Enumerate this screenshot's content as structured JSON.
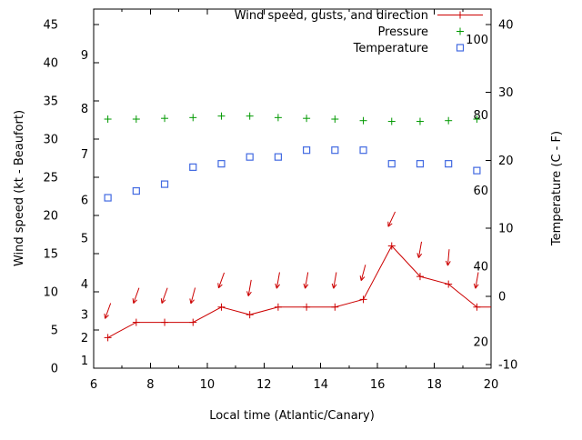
{
  "chart_data": {
    "type": "line",
    "title": "",
    "xlabel": "Local time (Atlantic/Canary)",
    "ylabel": "Wind speed (kt - Beaufort)",
    "y2label": "Temperature (C - F)",
    "x_range": [
      6,
      20
    ],
    "y_range_kt": [
      0,
      47
    ],
    "y2_range_c": [
      -10,
      40
    ],
    "x_ticks": [
      "6",
      "8",
      "10",
      "12",
      "14",
      "16",
      "18",
      "20"
    ],
    "y_ticks_kt": [
      "0",
      "5",
      "10",
      "15",
      "20",
      "25",
      "30",
      "35",
      "40",
      "45"
    ],
    "y2_ticks_c": [
      "-10",
      "0",
      "10",
      "20",
      "30",
      "40"
    ],
    "beaufort_scale_labels": [
      {
        "label": "1",
        "kt": 1
      },
      {
        "label": "2",
        "kt": 4
      },
      {
        "label": "3",
        "kt": 7
      },
      {
        "label": "4",
        "kt": 11
      },
      {
        "label": "5",
        "kt": 17
      },
      {
        "label": "6",
        "kt": 22
      },
      {
        "label": "7",
        "kt": 28
      },
      {
        "label": "8",
        "kt": 34
      },
      {
        "label": "9",
        "kt": 41
      }
    ],
    "fahrenheit_scale_labels": [
      {
        "label": "20",
        "f": 20
      },
      {
        "label": "40",
        "f": 40
      },
      {
        "label": "60",
        "f": 60
      },
      {
        "label": "80",
        "f": 80
      },
      {
        "label": "100",
        "f": 100
      }
    ],
    "x": [
      6.5,
      7.5,
      8.5,
      9.5,
      10.5,
      11.5,
      12.5,
      13.5,
      14.5,
      15.5,
      16.5,
      17.5,
      18.5,
      19.5
    ],
    "series": [
      {
        "name": "Wind speed, gusts, and direction",
        "type": "line+points+vectors",
        "marker": "plus",
        "color": "#cc0000",
        "wind_kt": [
          4,
          6,
          6,
          6,
          8,
          7,
          8,
          8,
          8,
          9,
          16,
          12,
          11,
          8
        ],
        "gust_kt": [
          7.5,
          9.5,
          9.5,
          9.5,
          11.5,
          10.5,
          11.5,
          11.5,
          11.5,
          12.5,
          19.5,
          15.5,
          14.5,
          11.5
        ],
        "arrow_tilt_deg": [
          20,
          20,
          20,
          15,
          20,
          10,
          10,
          10,
          10,
          15,
          25,
          10,
          5,
          10
        ]
      },
      {
        "name": "Pressure",
        "type": "points",
        "marker": "plus",
        "color": "#009900",
        "values_on_kt_axis": [
          32.6,
          32.6,
          32.7,
          32.8,
          33,
          33,
          32.8,
          32.7,
          32.6,
          32.4,
          32.3,
          32.3,
          32.4,
          32.6
        ]
      },
      {
        "name": "Temperature",
        "type": "points",
        "marker": "open-square",
        "color": "#4169e1",
        "temperature_c": [
          14.5,
          15.5,
          16.5,
          19,
          19.5,
          20.5,
          20.5,
          21.5,
          21.5,
          21.5,
          19.5,
          19.5,
          19.5,
          18.5
        ]
      }
    ],
    "legend": {
      "position": "top-right-inside",
      "entries": [
        {
          "label": "Wind speed, gusts, and direction"
        },
        {
          "label": "Pressure"
        },
        {
          "label": "Temperature"
        }
      ]
    },
    "colors": {
      "axis": "#000000",
      "background": "#ffffff"
    }
  }
}
